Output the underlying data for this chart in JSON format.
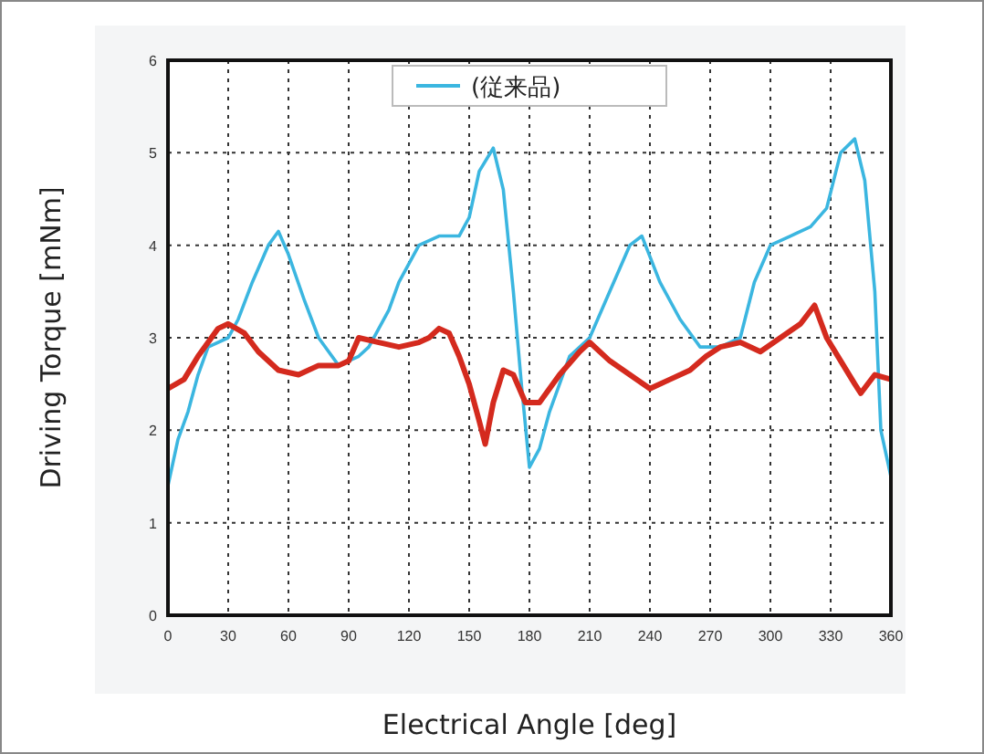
{
  "chart_data": {
    "type": "line",
    "xlabel": "Electrical Angle [deg]",
    "ylabel": "Driving Torque [mNm]",
    "xlim": [
      0,
      360
    ],
    "xticks": [
      0,
      30,
      60,
      90,
      120,
      150,
      180,
      210,
      240,
      270,
      300,
      330,
      360
    ],
    "ylim": [
      0,
      6
    ],
    "yticks": [
      0,
      1,
      2,
      3,
      4,
      5,
      6
    ],
    "grid": true,
    "legend": "top",
    "line_style": "solid",
    "marker": "none",
    "series": [
      {
        "name": "(従来品)",
        "color": "#3bb6e0",
        "x": [
          0,
          5,
          10,
          15,
          20,
          30,
          35,
          42,
          50,
          55,
          60,
          68,
          75,
          85,
          95,
          100,
          110,
          115,
          125,
          135,
          145,
          150,
          155,
          162,
          167,
          172,
          176,
          180,
          185,
          190,
          200,
          210,
          220,
          230,
          236,
          245,
          255,
          265,
          275,
          285,
          292,
          300,
          310,
          320,
          328,
          335,
          342,
          347,
          352,
          355,
          360
        ],
        "values": [
          1.4,
          1.9,
          2.2,
          2.6,
          2.9,
          3.0,
          3.2,
          3.6,
          4.0,
          4.15,
          3.9,
          3.4,
          3.0,
          2.7,
          2.8,
          2.9,
          3.3,
          3.6,
          4.0,
          4.1,
          4.1,
          4.3,
          4.8,
          5.05,
          4.6,
          3.5,
          2.5,
          1.6,
          1.8,
          2.2,
          2.8,
          3.0,
          3.5,
          4.0,
          4.1,
          3.6,
          3.2,
          2.9,
          2.9,
          3.0,
          3.6,
          4.0,
          4.1,
          4.2,
          4.4,
          5.0,
          5.15,
          4.7,
          3.5,
          2.0,
          1.5
        ]
      },
      {
        "color": "#d42a1e",
        "x": [
          0,
          8,
          15,
          25,
          30,
          38,
          45,
          55,
          65,
          75,
          85,
          90,
          95,
          105,
          115,
          125,
          130,
          135,
          140,
          145,
          150,
          155,
          158,
          162,
          167,
          172,
          178,
          185,
          195,
          205,
          210,
          220,
          230,
          240,
          250,
          260,
          268,
          275,
          285,
          295,
          305,
          315,
          322,
          328,
          335,
          342,
          345,
          352,
          360
        ],
        "values": [
          2.45,
          2.55,
          2.8,
          3.1,
          3.15,
          3.05,
          2.85,
          2.65,
          2.6,
          2.7,
          2.7,
          2.75,
          3.0,
          2.95,
          2.9,
          2.95,
          3.0,
          3.1,
          3.05,
          2.8,
          2.5,
          2.1,
          1.85,
          2.3,
          2.65,
          2.6,
          2.3,
          2.3,
          2.6,
          2.85,
          2.95,
          2.75,
          2.6,
          2.45,
          2.55,
          2.65,
          2.8,
          2.9,
          2.95,
          2.85,
          3.0,
          3.15,
          3.35,
          3.0,
          2.75,
          2.5,
          2.4,
          2.6,
          2.55
        ]
      }
    ]
  }
}
